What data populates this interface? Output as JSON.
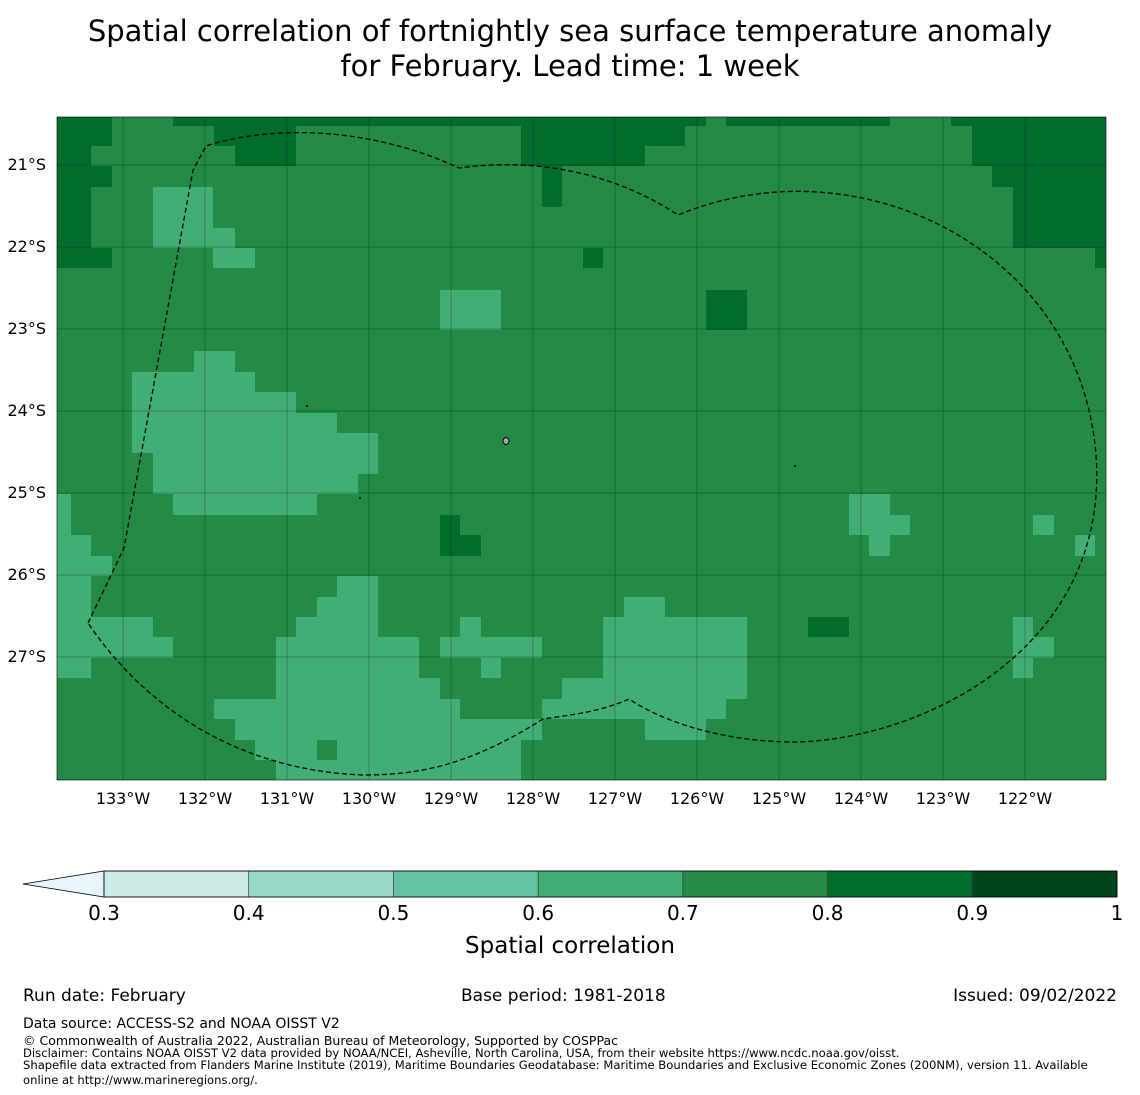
{
  "title": {
    "line1": "Spatial correlation of fortnightly sea surface temperature anomaly",
    "line2": "for February. Lead time: 1 week"
  },
  "chart_data": {
    "type": "heatmap",
    "variable": "Spatial correlation",
    "lat_labels": [
      "21°S",
      "22°S",
      "23°S",
      "24°S",
      "25°S",
      "26°S",
      "27°S"
    ],
    "lon_labels": [
      "133°W",
      "132°W",
      "131°W",
      "130°W",
      "129°W",
      "128°W",
      "127°W",
      "126°W",
      "125°W",
      "124°W",
      "123°W",
      "122°W"
    ],
    "lon_range": [
      -133.8,
      -121.0
    ],
    "lat_range": [
      -28.5,
      -20.4
    ],
    "grid_resolution_deg": 0.25,
    "colorbar": {
      "ticks": [
        "0.3",
        "0.4",
        "0.5",
        "0.6",
        "0.7",
        "0.8",
        "0.9",
        "1"
      ],
      "bins": [
        {
          "min": 0.3,
          "max": 0.4,
          "color": "#ccece6"
        },
        {
          "min": 0.4,
          "max": 0.5,
          "color": "#99d8c9"
        },
        {
          "min": 0.5,
          "max": 0.6,
          "color": "#66c2a4"
        },
        {
          "min": 0.6,
          "max": 0.7,
          "color": "#41ae76"
        },
        {
          "min": 0.7,
          "max": 0.8,
          "color": "#238b45"
        },
        {
          "min": 0.8,
          "max": 0.9,
          "color": "#006d2c"
        },
        {
          "min": 0.9,
          "max": 1.0,
          "color": "#00441b"
        }
      ],
      "extend": "min",
      "extend_color": "#e5f5f9",
      "label": "Spatial correlation"
    },
    "background_class": "0.7-0.8",
    "regions_0_6_to_0_7": [
      "western centre around 131°W, 24°S to 25°S",
      "south-west around 130.5°W, 27°S to 28.5°S",
      "south-centre around 126.5°W, 26.5°S to 28°S",
      "around 129°W, 23°S",
      "around 132°W, 21.5°S",
      "around 124°W, 25.5°S",
      "around 121.5°W, 27°S"
    ],
    "regions_0_8_to_0_9": [
      "north-east corner around 121.5°W, 21°S",
      "north-west corner around 133.5°W, 21.5°S",
      "northern edge around 128°W, 20.6°S",
      "around 125.8°W, 23°S",
      "around 124.3°W, 26.6°S",
      "around 129°W, 25.5°S"
    ],
    "annotations": [
      "dashed boundary: Pitcairn Islands EEZ (200NM)"
    ]
  },
  "footer": {
    "run_date": "Run date: February",
    "base_period": "Base period: 1981-2018",
    "issued": "Issued: 09/02/2022",
    "data_source": "Data source: ACCESS-S2 and NOAA OISST V2",
    "copyright": "© Commonwealth of Australia 2022, Australian Bureau of Meteorology, Supported by COSPPac",
    "disclaimer": "Disclaimer: Contains NOAA OISST V2 data provided by NOAA/NCEI, Asheville, North Carolina, USA, from their website https://www.ncdc.noaa.gov/oisst.",
    "shapefile_line1": "Shapefile data extracted from Flanders Marine Institute (2019), Maritime Boundaries Geodatabase: Maritime Boundaries and Exclusive Economic Zones (200NM), version 11. Available",
    "shapefile_line2": "online at http://www.marineregions.org/."
  }
}
